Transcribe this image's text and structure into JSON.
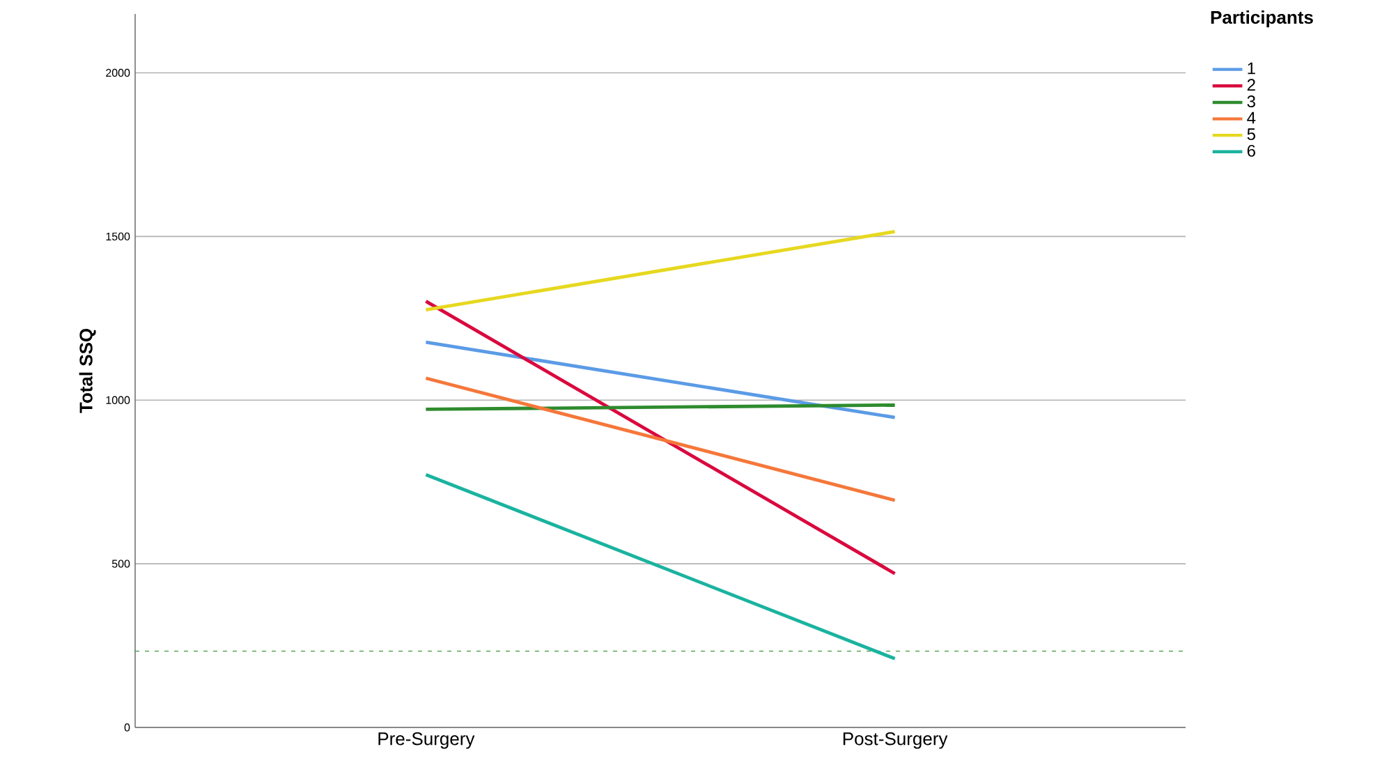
{
  "chart_data": {
    "type": "line",
    "ylabel": "Total SSQ",
    "legend_title": "Participants",
    "legend": "top right",
    "grid": "y",
    "marker": "none",
    "line_style": "solid",
    "categories": [
      "Pre-Surgery",
      "Post-Surgery"
    ],
    "ylim": [
      0,
      2180
    ],
    "yticks": [
      0,
      500,
      1000,
      1500,
      2000
    ],
    "series": [
      {
        "name": "1",
        "color": "#5b9be6",
        "values": [
          1177,
          947
        ]
      },
      {
        "name": "2",
        "color": "#d9093e",
        "values": [
          1302,
          470
        ]
      },
      {
        "name": "3",
        "color": "#2e8b2e",
        "values": [
          972,
          985
        ]
      },
      {
        "name": "4",
        "color": "#f5773a",
        "values": [
          1067,
          694
        ]
      },
      {
        "name": "5",
        "color": "#e6d81f",
        "values": [
          1276,
          1515
        ]
      },
      {
        "name": "6",
        "color": "#1ab39f",
        "values": [
          772,
          210
        ]
      }
    ],
    "ref_lines": [
      {
        "axis": "y",
        "value": 233,
        "color": "#3a9a3a",
        "line_style": "dashed"
      }
    ]
  }
}
